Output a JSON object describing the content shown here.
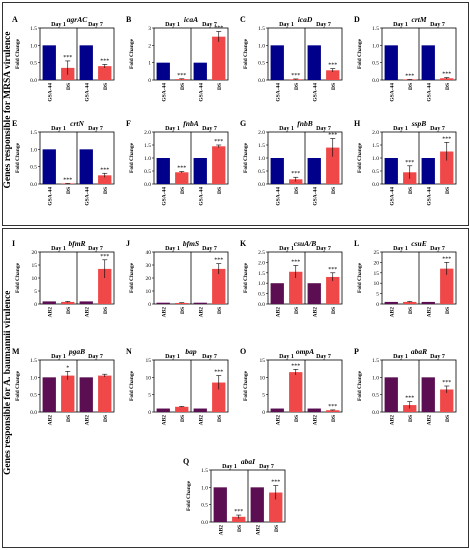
{
  "sections": [
    {
      "label": "Genes responsible for MRSA virulence"
    },
    {
      "label": "Genes responsible for A. baumannii virulence"
    }
  ],
  "days": [
    "Day 1",
    "Day 7"
  ],
  "ylabel": "Fold Change",
  "colors": {
    "mrsa_control": "#00008b",
    "ab_control": "#5b0f52",
    "treated": "#f04848"
  },
  "chart_data": [
    {
      "type": "bar",
      "letter": "A",
      "gene": "agrAC",
      "categories": [
        "GSA-44",
        "DS",
        "GSA-44",
        "DS"
      ],
      "values": [
        1.0,
        0.35,
        1.0,
        0.4
      ],
      "errors": [
        0,
        0.2,
        0,
        0.05
      ],
      "sig": [
        "",
        "***",
        "",
        "***"
      ],
      "ylim": [
        0,
        1.5
      ],
      "yticks": [
        "0.0",
        "0.5",
        "1.0",
        "1.5"
      ]
    },
    {
      "type": "bar",
      "letter": "B",
      "gene": "icaA",
      "categories": [
        "GSA-44",
        "DS",
        "GSA-44",
        "DS"
      ],
      "values": [
        1.0,
        0.05,
        1.0,
        2.5
      ],
      "errors": [
        0,
        0.02,
        0,
        0.3
      ],
      "sig": [
        "",
        "***",
        "",
        "***"
      ],
      "ylim": [
        0,
        3
      ],
      "yticks": [
        "0",
        "1",
        "2",
        "3"
      ]
    },
    {
      "type": "bar",
      "letter": "C",
      "gene": "icaD",
      "categories": [
        "GSA-44",
        "DS",
        "GSA-44",
        "DS"
      ],
      "values": [
        1.0,
        0.02,
        1.0,
        0.28
      ],
      "errors": [
        0,
        0.01,
        0,
        0.05
      ],
      "sig": [
        "",
        "***",
        "",
        "***"
      ],
      "ylim": [
        0,
        1.5
      ],
      "yticks": [
        "0.0",
        "0.5",
        "1.0",
        "1.5"
      ]
    },
    {
      "type": "bar",
      "letter": "D",
      "gene": "crtM",
      "categories": [
        "GSA-44",
        "DS",
        "GSA-44",
        "DS"
      ],
      "values": [
        1.0,
        0.01,
        1.0,
        0.05
      ],
      "errors": [
        0,
        0.005,
        0,
        0.02
      ],
      "sig": [
        "",
        "***",
        "",
        "***"
      ],
      "ylim": [
        0,
        1.5
      ],
      "yticks": [
        "0.0",
        "0.5",
        "1.0",
        "1.5"
      ]
    },
    {
      "type": "bar",
      "letter": "E",
      "gene": "crtN",
      "categories": [
        "GSA-44",
        "DS",
        "GSA-44",
        "DS"
      ],
      "values": [
        1.0,
        0.01,
        1.0,
        0.25
      ],
      "errors": [
        0,
        0.005,
        0,
        0.06
      ],
      "sig": [
        "",
        "***",
        "",
        "***"
      ],
      "ylim": [
        0,
        1.5
      ],
      "yticks": [
        "0.0",
        "0.5",
        "1.0",
        "1.5"
      ]
    },
    {
      "type": "bar",
      "letter": "F",
      "gene": "fnbA",
      "categories": [
        "GSA-44",
        "DS",
        "GSA-44",
        "DS"
      ],
      "values": [
        1.0,
        0.45,
        1.0,
        1.45
      ],
      "errors": [
        0,
        0.03,
        0,
        0.05
      ],
      "sig": [
        "",
        "***",
        "",
        "***"
      ],
      "ylim": [
        0,
        2.0
      ],
      "yticks": [
        "0.0",
        "0.5",
        "1.0",
        "1.5",
        "2.0"
      ]
    },
    {
      "type": "bar",
      "letter": "G",
      "gene": "fnbB",
      "categories": [
        "GSA-44",
        "DS",
        "GSA-44",
        "DS"
      ],
      "values": [
        1.0,
        0.18,
        1.0,
        1.4
      ],
      "errors": [
        0,
        0.08,
        0,
        0.35
      ],
      "sig": [
        "",
        "***",
        "",
        "***"
      ],
      "ylim": [
        0,
        2.0
      ],
      "yticks": [
        "0.0",
        "0.5",
        "1.0",
        "1.5",
        "2.0"
      ]
    },
    {
      "type": "bar",
      "letter": "H",
      "gene": "sspB",
      "categories": [
        "GSA-44",
        "DS",
        "GSA-44",
        "DS"
      ],
      "values": [
        1.0,
        0.45,
        1.0,
        1.25
      ],
      "errors": [
        0,
        0.25,
        0,
        0.35
      ],
      "sig": [
        "",
        "***",
        "",
        "***"
      ],
      "ylim": [
        0,
        2.0
      ],
      "yticks": [
        "0.0",
        "0.5",
        "1.0",
        "1.5",
        "2.0"
      ]
    },
    {
      "type": "bar",
      "letter": "I",
      "gene": "bfmR",
      "categories": [
        "AB2",
        "DS",
        "AB2",
        "DS"
      ],
      "values": [
        1.0,
        0.8,
        1.0,
        13.5
      ],
      "errors": [
        0,
        0.2,
        0,
        3.5
      ],
      "sig": [
        "",
        "",
        "",
        "***"
      ],
      "ylim": [
        0,
        20
      ],
      "yticks": [
        "0",
        "5",
        "10",
        "15",
        "20"
      ]
    },
    {
      "type": "bar",
      "letter": "J",
      "gene": "bfmS",
      "categories": [
        "AB2",
        "DS",
        "AB2",
        "DS"
      ],
      "values": [
        1.0,
        0.8,
        1.0,
        27
      ],
      "errors": [
        0,
        0.2,
        0,
        4
      ],
      "sig": [
        "",
        "",
        "",
        "***"
      ],
      "ylim": [
        0,
        40
      ],
      "yticks": [
        "0",
        "10",
        "20",
        "30",
        "40"
      ]
    },
    {
      "type": "bar",
      "letter": "K",
      "gene": "csuA/B",
      "categories": [
        "AB2",
        "DS",
        "AB2",
        "DS"
      ],
      "values": [
        1.0,
        1.55,
        1.0,
        1.3
      ],
      "errors": [
        0,
        0.3,
        0,
        0.2
      ],
      "sig": [
        "",
        "***",
        "",
        "***"
      ],
      "ylim": [
        0,
        2.5
      ],
      "yticks": [
        "0.0",
        "0.5",
        "1.0",
        "1.5",
        "2.0",
        "2.5"
      ]
    },
    {
      "type": "bar",
      "letter": "L",
      "gene": "csuE",
      "categories": [
        "AB2",
        "DS",
        "AB2",
        "DS"
      ],
      "values": [
        1.0,
        1.0,
        1.0,
        17
      ],
      "errors": [
        0,
        0.2,
        0,
        3
      ],
      "sig": [
        "",
        "",
        "",
        "***"
      ],
      "ylim": [
        0,
        25
      ],
      "yticks": [
        "0",
        "5",
        "10",
        "15",
        "20",
        "25"
      ]
    },
    {
      "type": "bar",
      "letter": "M",
      "gene": "pgaB",
      "categories": [
        "AB2",
        "DS",
        "AB2",
        "DS"
      ],
      "values": [
        1.0,
        1.05,
        1.0,
        1.05
      ],
      "errors": [
        0,
        0.12,
        0,
        0.04
      ],
      "sig": [
        "",
        "*",
        "",
        ""
      ],
      "ylim": [
        0,
        1.5
      ],
      "yticks": [
        "0.0",
        "0.5",
        "1.0",
        "1.5"
      ]
    },
    {
      "type": "bar",
      "letter": "N",
      "gene": "bap",
      "categories": [
        "AB2",
        "DS",
        "AB2",
        "DS"
      ],
      "values": [
        1.0,
        1.5,
        1.0,
        8.5
      ],
      "errors": [
        0,
        0.1,
        0,
        2
      ],
      "sig": [
        "",
        "",
        "",
        "***"
      ],
      "ylim": [
        0,
        15
      ],
      "yticks": [
        "0",
        "5",
        "10",
        "15"
      ]
    },
    {
      "type": "bar",
      "letter": "O",
      "gene": "ompA",
      "categories": [
        "AB2",
        "DS",
        "AB2",
        "DS"
      ],
      "values": [
        1.0,
        11.5,
        1.0,
        0.5
      ],
      "errors": [
        0,
        0.8,
        0,
        0.1
      ],
      "sig": [
        "",
        "***",
        "",
        "***"
      ],
      "ylim": [
        0,
        15
      ],
      "yticks": [
        "0",
        "5",
        "10",
        "15"
      ]
    },
    {
      "type": "bar",
      "letter": "P",
      "gene": "abaR",
      "categories": [
        "AB2",
        "DS",
        "AB2",
        "DS"
      ],
      "values": [
        1.0,
        0.2,
        1.0,
        0.65
      ],
      "errors": [
        0,
        0.1,
        0,
        0.1
      ],
      "sig": [
        "",
        "***",
        "",
        "***"
      ],
      "ylim": [
        0,
        1.5
      ],
      "yticks": [
        "0.0",
        "0.5",
        "1.0",
        "1.5"
      ]
    },
    {
      "type": "bar",
      "letter": "Q",
      "gene": "abaI",
      "categories": [
        "AB2",
        "DS",
        "AB2",
        "DS"
      ],
      "values": [
        1.0,
        0.15,
        1.0,
        0.85
      ],
      "errors": [
        0,
        0.05,
        0,
        0.2
      ],
      "sig": [
        "",
        "***",
        "",
        "***"
      ],
      "ylim": [
        0,
        1.5
      ],
      "yticks": [
        "0.0",
        "0.5",
        "1.0",
        "1.5"
      ]
    }
  ]
}
